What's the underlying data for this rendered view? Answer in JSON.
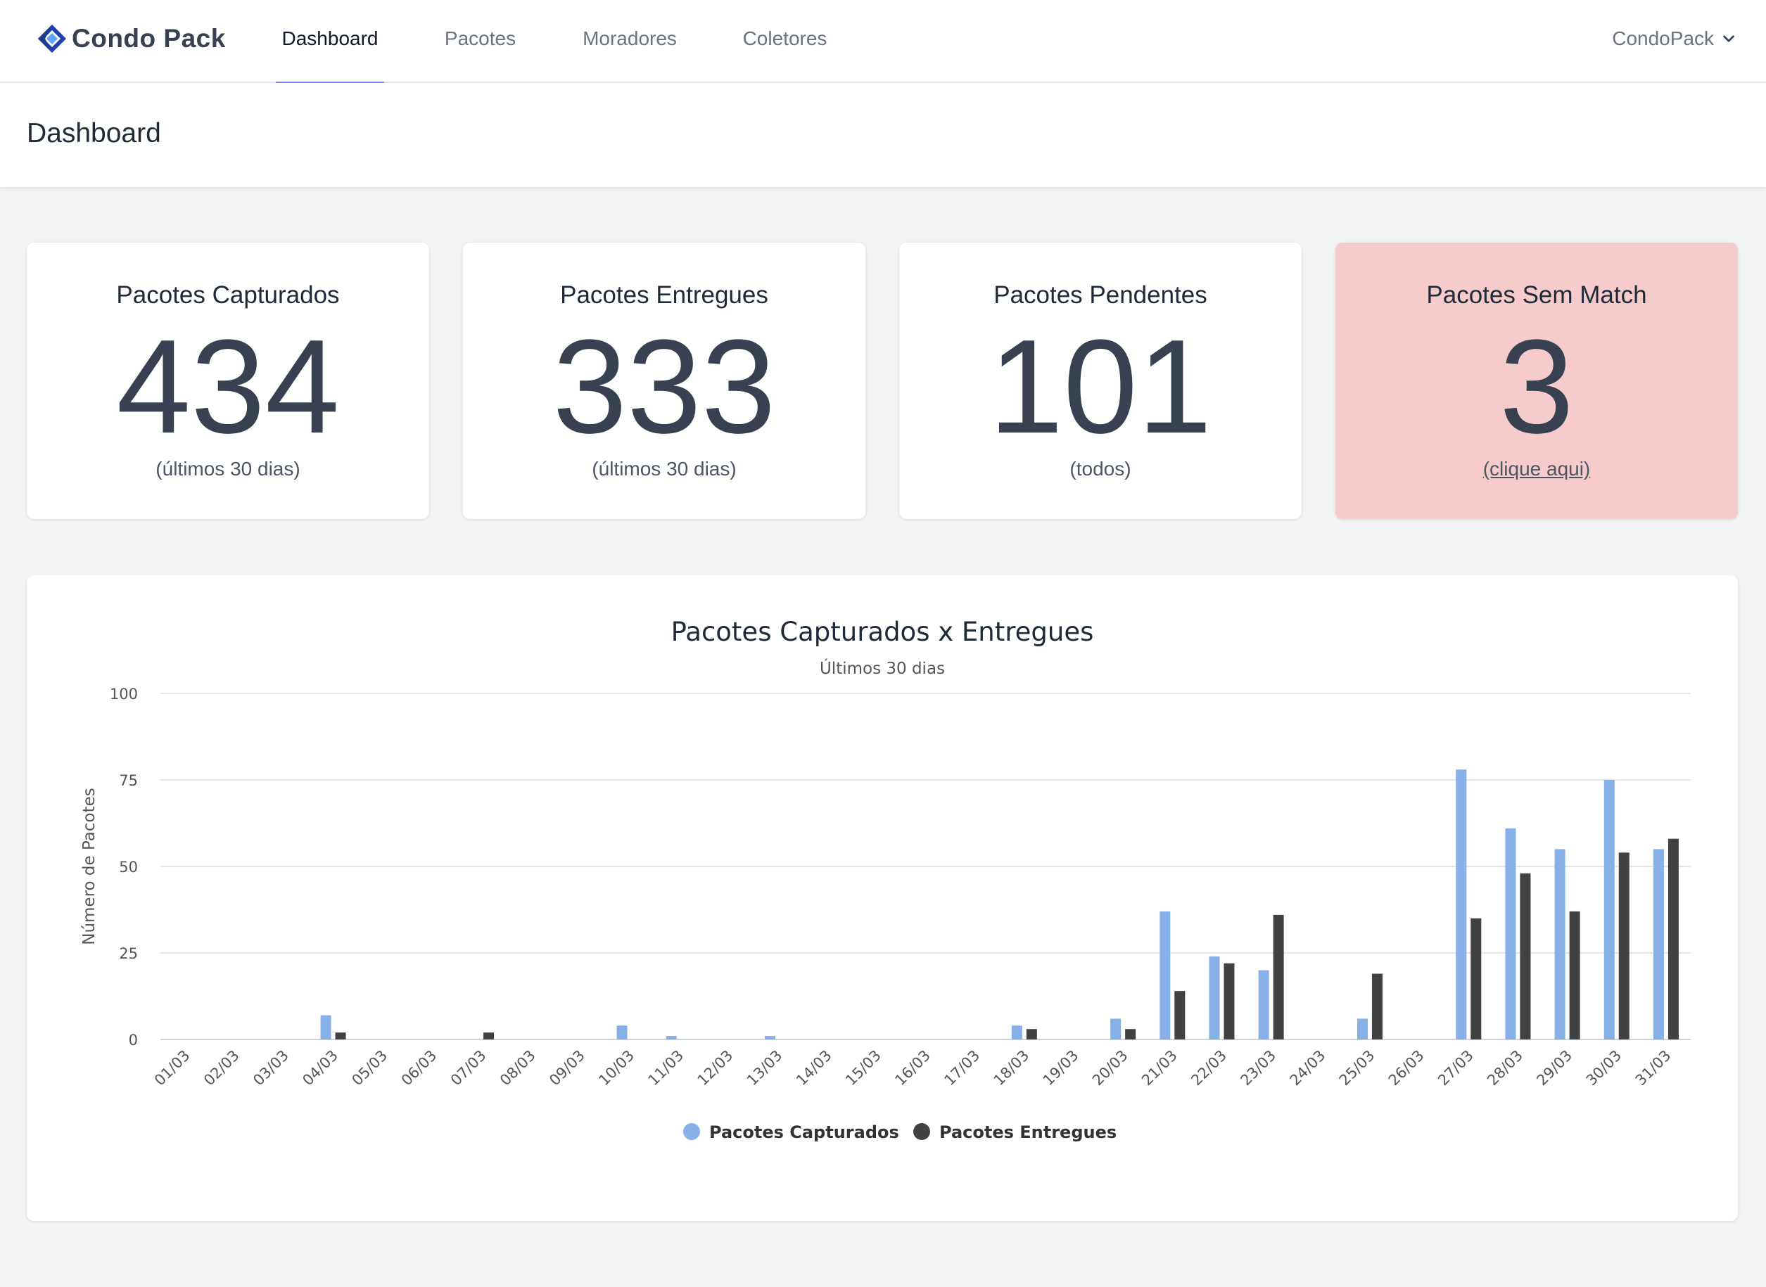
{
  "brand": {
    "name": "Condo Pack"
  },
  "nav": {
    "tabs": [
      {
        "label": "Dashboard",
        "active": true
      },
      {
        "label": "Pacotes",
        "active": false
      },
      {
        "label": "Moradores",
        "active": false
      },
      {
        "label": "Coletores",
        "active": false
      }
    ],
    "user_menu": "CondoPack"
  },
  "header": {
    "title": "Dashboard"
  },
  "cards": [
    {
      "title": "Pacotes Capturados",
      "value": "434",
      "subtitle": "(últimos 30 dias)"
    },
    {
      "title": "Pacotes Entregues",
      "value": "333",
      "subtitle": "(últimos 30 dias)"
    },
    {
      "title": "Pacotes Pendentes",
      "value": "101",
      "subtitle": "(todos)"
    },
    {
      "title": "Pacotes Sem Match",
      "value": "3",
      "subtitle": "(clique aqui)"
    }
  ],
  "colors": {
    "accent": "#818cf8",
    "alert_card": "#f5cccb",
    "series_captured": "#86b0e6",
    "series_delivered": "#3f4143"
  },
  "chart_data": {
    "type": "bar",
    "title": "Pacotes Capturados x Entregues",
    "subtitle": "Últimos 30 dias",
    "xlabel": "",
    "ylabel": "Número de Pacotes",
    "ylim": [
      0,
      100
    ],
    "yticks": [
      0,
      25,
      50,
      75,
      100
    ],
    "grid": true,
    "legend_position": "bottom",
    "categories": [
      "01/03",
      "02/03",
      "03/03",
      "04/03",
      "05/03",
      "06/03",
      "07/03",
      "08/03",
      "09/03",
      "10/03",
      "11/03",
      "12/03",
      "13/03",
      "14/03",
      "15/03",
      "16/03",
      "17/03",
      "18/03",
      "19/03",
      "20/03",
      "21/03",
      "22/03",
      "23/03",
      "24/03",
      "25/03",
      "26/03",
      "27/03",
      "28/03",
      "29/03",
      "30/03",
      "31/03"
    ],
    "series": [
      {
        "name": "Pacotes Capturados",
        "values": [
          0,
          0,
          0,
          7,
          0,
          0,
          0,
          0,
          0,
          4,
          1,
          0,
          1,
          0,
          0,
          0,
          0,
          4,
          0,
          6,
          37,
          24,
          20,
          0,
          6,
          0,
          78,
          61,
          55,
          75,
          55
        ]
      },
      {
        "name": "Pacotes Entregues",
        "values": [
          0,
          0,
          0,
          2,
          0,
          0,
          2,
          0,
          0,
          0,
          0,
          0,
          0,
          0,
          0,
          0,
          0,
          3,
          0,
          3,
          14,
          22,
          36,
          0,
          19,
          0,
          35,
          48,
          37,
          54,
          58
        ]
      }
    ]
  }
}
